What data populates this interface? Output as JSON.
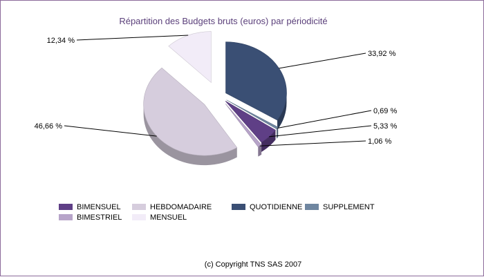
{
  "chart_data": {
    "type": "pie",
    "title": "Répartition des Budgets bruts (euros) par périodicité",
    "slices": [
      {
        "name": "QUOTIDIENNE",
        "value": 33.92,
        "label": "33,92 %",
        "color": "#3a4f74"
      },
      {
        "name": "SUPPLEMENT",
        "value": 0.69,
        "label": "0,69 %",
        "color": "#6f86a0"
      },
      {
        "name": "BIMENSUEL",
        "value": 5.33,
        "label": "5,33 %",
        "color": "#5f3f86"
      },
      {
        "name": "BIMESTRIEL",
        "value": 1.06,
        "label": "1,06 %",
        "color": "#b7a4c9"
      },
      {
        "name": "HEBDOMADAIRE",
        "value": 46.66,
        "label": "46,66 %",
        "color": "#d6cddd"
      },
      {
        "name": "MENSUEL",
        "value": 12.34,
        "label": "12,34 %",
        "color": "#f2ecf8"
      }
    ],
    "legend_placement": "bottom"
  },
  "legend": {
    "row1": [
      {
        "label": "BIMENSUEL",
        "color": "#5f3f86"
      },
      {
        "label": "HEBDOMADAIRE",
        "color": "#d6cddd"
      },
      {
        "label": "QUOTIDIENNE",
        "color": "#3a4f74"
      },
      {
        "label": "SUPPLEMENT",
        "color": "#6f86a0"
      }
    ],
    "row2": [
      {
        "label": "BIMESTRIEL",
        "color": "#b7a4c9"
      },
      {
        "label": "MENSUEL",
        "color": "#f2ecf8"
      }
    ]
  },
  "footer": {
    "copyright": "(c) Copyright TNS SAS 2007"
  }
}
